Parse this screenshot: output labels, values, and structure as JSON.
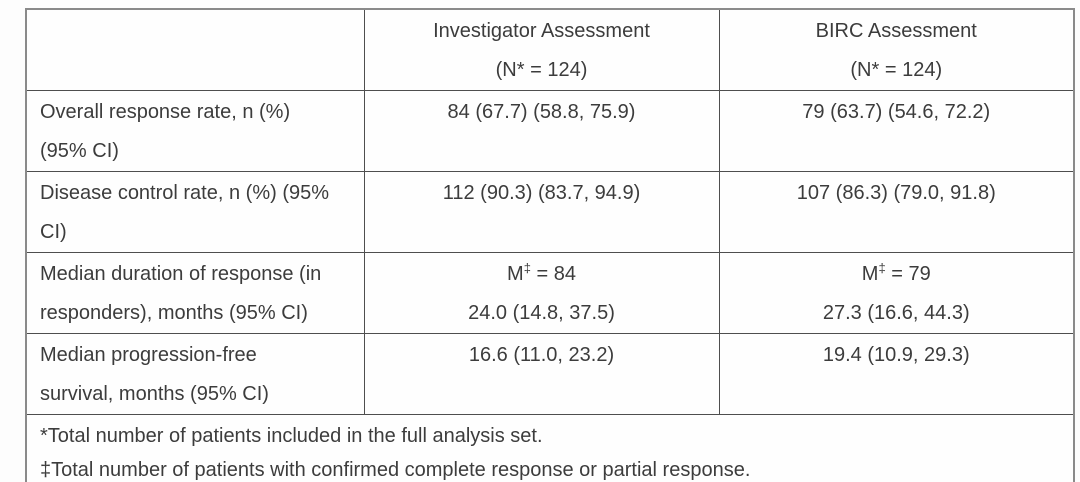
{
  "colors": {
    "text": "#3c3c3c",
    "inner_border": "#4e4e4e",
    "outer_border": "#8a8a8a",
    "background": "#fdfdfd"
  },
  "table": {
    "header": {
      "row_label_column": "",
      "investigator": {
        "line1": "Investigator Assessment",
        "line2": "(N* = 124)"
      },
      "birc": {
        "line1": "BIRC Assessment",
        "line2": "(N* = 124)"
      }
    },
    "rows": [
      {
        "id": "overall-response-rate",
        "label_line1": "Overall response rate, n (%)",
        "label_line2": "(95% CI)",
        "investigator": "84 (67.7) (58.8, 75.9)",
        "birc": "79 (63.7) (54.6, 72.2)"
      },
      {
        "id": "disease-control-rate",
        "label_line1": "Disease control rate, n (%) (95%",
        "label_line2": "CI)",
        "investigator": "112 (90.3) (83.7, 94.9)",
        "birc": "107 (86.3) (79.0, 91.8)"
      },
      {
        "id": "median-duration-of-response",
        "label_line1": "Median duration of response (in",
        "label_line2": "responders), months (95% CI)",
        "investigator_m": "M",
        "investigator_m_sup": "‡",
        "investigator_m_eq": "= 84",
        "investigator_line2": "24.0 (14.8, 37.5)",
        "birc_m": "M",
        "birc_m_sup": "‡",
        "birc_m_eq": "= 79",
        "birc_line2": "27.3 (16.6, 44.3)"
      },
      {
        "id": "median-progression-free-survival",
        "label_line1": "Median progression-free",
        "label_line2": "survival, months (95% CI)",
        "investigator": "16.6 (11.0, 23.2)",
        "birc": "19.4 (10.9, 29.3)"
      }
    ],
    "footnotes": {
      "line1": "*Total number of patients included in the full analysis set.",
      "line2": "‡Total number of patients with confirmed complete response or partial response."
    }
  }
}
